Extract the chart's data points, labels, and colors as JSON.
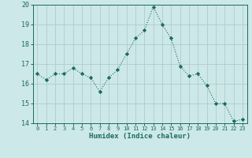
{
  "x": [
    0,
    1,
    2,
    3,
    4,
    5,
    6,
    7,
    8,
    9,
    10,
    11,
    12,
    13,
    14,
    15,
    16,
    17,
    18,
    19,
    20,
    21,
    22,
    23
  ],
  "y": [
    16.5,
    16.2,
    16.5,
    16.5,
    16.8,
    16.5,
    16.3,
    15.6,
    16.3,
    16.7,
    17.5,
    18.3,
    18.7,
    19.9,
    19.0,
    18.3,
    16.9,
    16.4,
    16.5,
    15.9,
    15.0,
    15.0,
    14.1,
    14.2
  ],
  "line_color": "#1a6b5a",
  "marker": "D",
  "marker_size": 2.2,
  "bg_color": "#cde8e8",
  "grid_color": "#aecccc",
  "xlabel": "Humidex (Indice chaleur)",
  "ylim": [
    14,
    20
  ],
  "xlim_min": -0.5,
  "xlim_max": 23.5,
  "yticks": [
    14,
    15,
    16,
    17,
    18,
    19,
    20
  ],
  "xticks": [
    0,
    1,
    2,
    3,
    4,
    5,
    6,
    7,
    8,
    9,
    10,
    11,
    12,
    13,
    14,
    15,
    16,
    17,
    18,
    19,
    20,
    21,
    22,
    23
  ],
  "xlabel_fontsize": 6.5,
  "xtick_fontsize": 5.0,
  "ytick_fontsize": 6.0
}
